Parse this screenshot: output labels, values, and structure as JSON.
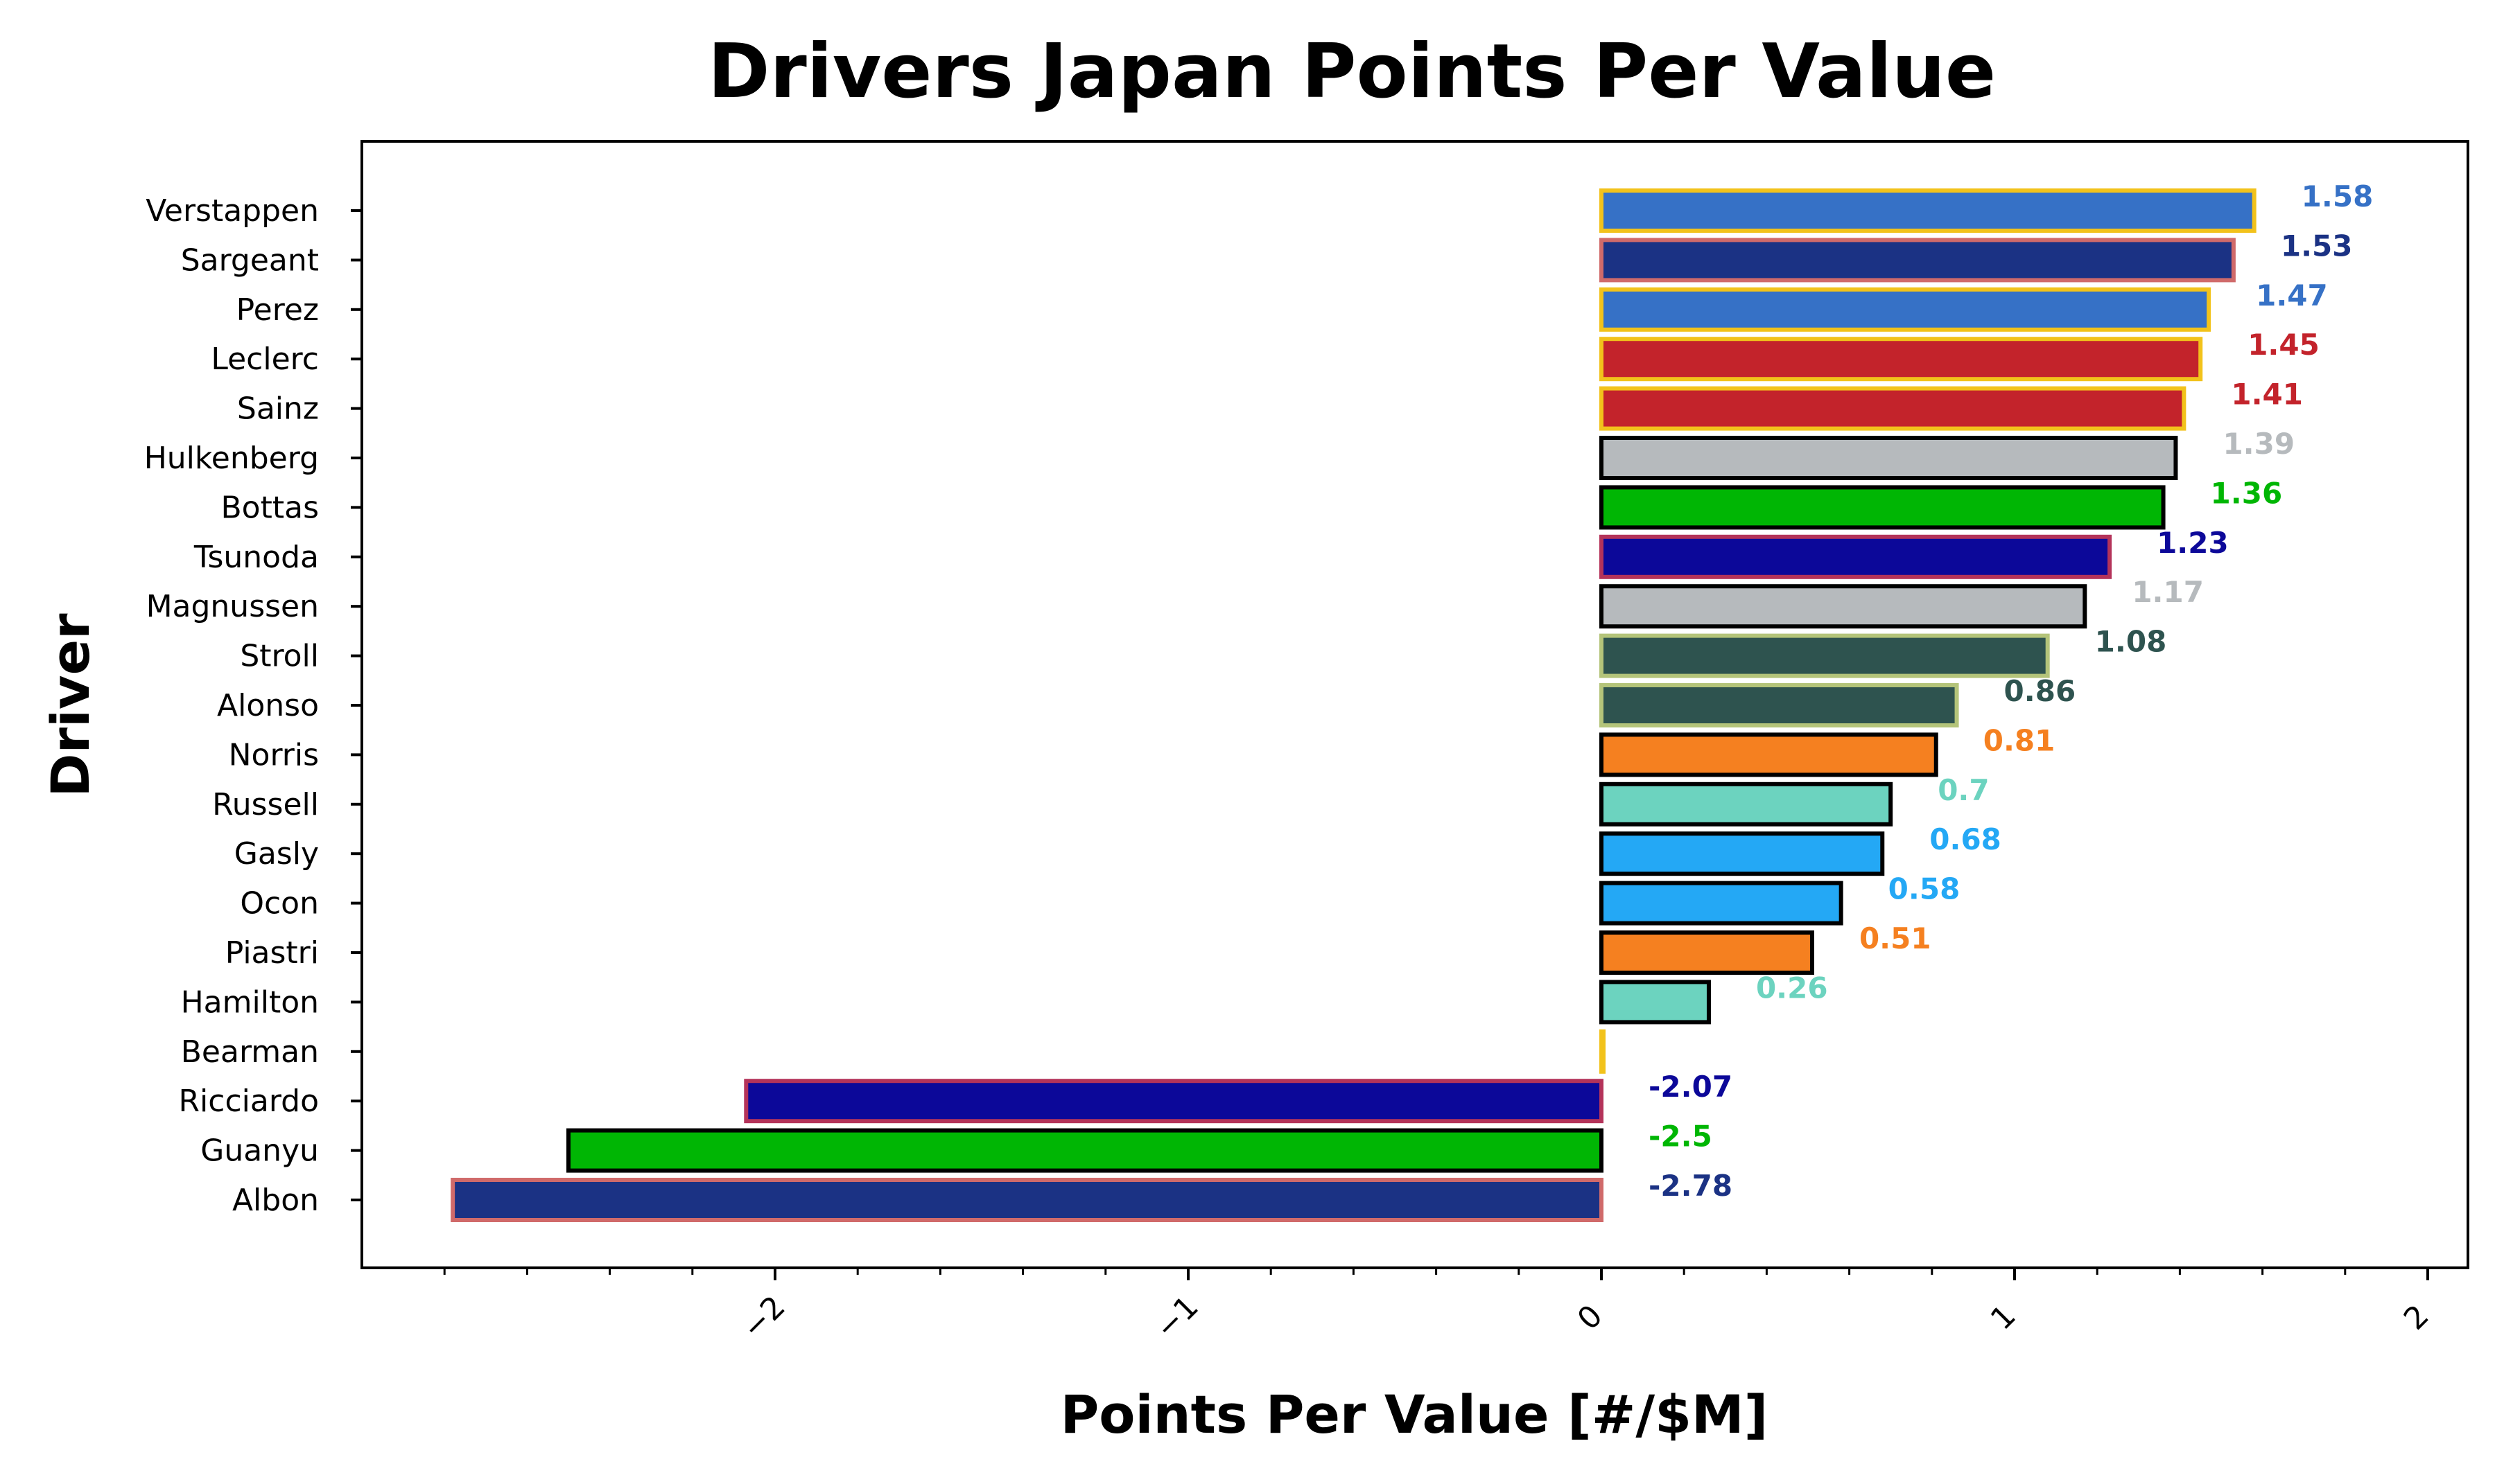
{
  "chart_data": {
    "type": "bar",
    "orientation": "horizontal",
    "title": "Drivers Japan Points Per Value",
    "xlabel": "Points Per Value [#/$M]",
    "ylabel": "Driver",
    "xlim": [
      -3.0,
      2.0
    ],
    "xticks": [
      -2,
      -1,
      0,
      1,
      2
    ],
    "xtick_labels": [
      "−2",
      "−1",
      "0",
      "1",
      "2"
    ],
    "grid": false,
    "legend": "none",
    "categories": [
      "Verstappen",
      "Sargeant",
      "Perez",
      "Leclerc",
      "Sainz",
      "Hulkenberg",
      "Bottas",
      "Tsunoda",
      "Magnussen",
      "Stroll",
      "Alonso",
      "Norris",
      "Russell",
      "Gasly",
      "Ocon",
      "Piastri",
      "Hamilton",
      "Bearman",
      "Ricciardo",
      "Guanyu",
      "Albon"
    ],
    "values": [
      1.58,
      1.53,
      1.47,
      1.45,
      1.41,
      1.39,
      1.36,
      1.23,
      1.17,
      1.08,
      0.86,
      0.81,
      0.7,
      0.68,
      0.58,
      0.51,
      0.26,
      0.0,
      -2.07,
      -2.5,
      -2.78
    ],
    "value_labels": [
      "1.58",
      "1.53",
      "1.47",
      "1.45",
      "1.41",
      "1.39",
      "1.36",
      "1.23",
      "1.17",
      "1.08",
      "0.86",
      "0.81",
      "0.7",
      "0.68",
      "0.58",
      "0.51",
      "0.26",
      "",
      "-2.07",
      "-2.5",
      "-2.78"
    ],
    "fill_colors": [
      "#3671C6",
      "#1B3284",
      "#3671C6",
      "#C3232B",
      "#C3232B",
      "#B6BABD",
      "#00B604",
      "#0C0899",
      "#B6BABD",
      "#2E534F",
      "#2E534F",
      "#F58020",
      "#6CD3BF",
      "#24A8F5",
      "#24A8F5",
      "#F58020",
      "#6CD3BF",
      "#C3232B",
      "#0C0899",
      "#00B604",
      "#1B3284"
    ],
    "edge_colors": [
      "#F2C21B",
      "#D06A6A",
      "#F2C21B",
      "#F2C21B",
      "#F2C21B",
      "#000000",
      "#000000",
      "#B4335A",
      "#000000",
      "#B4C47A",
      "#B4C47A",
      "#000000",
      "#000000",
      "#000000",
      "#000000",
      "#000000",
      "#000000",
      "#F2C21B",
      "#B4335A",
      "#000000",
      "#D06A6A"
    ],
    "label_colors": [
      "#3671C6",
      "#1B3284",
      "#3671C6",
      "#C3232B",
      "#C3232B",
      "#B6BABD",
      "#00B604",
      "#0C0899",
      "#B6BABD",
      "#2E534F",
      "#2E534F",
      "#F58020",
      "#6CD3BF",
      "#24A8F5",
      "#24A8F5",
      "#F58020",
      "#6CD3BF",
      "#C3232B",
      "#0C0899",
      "#00B604",
      "#1B3284"
    ]
  }
}
